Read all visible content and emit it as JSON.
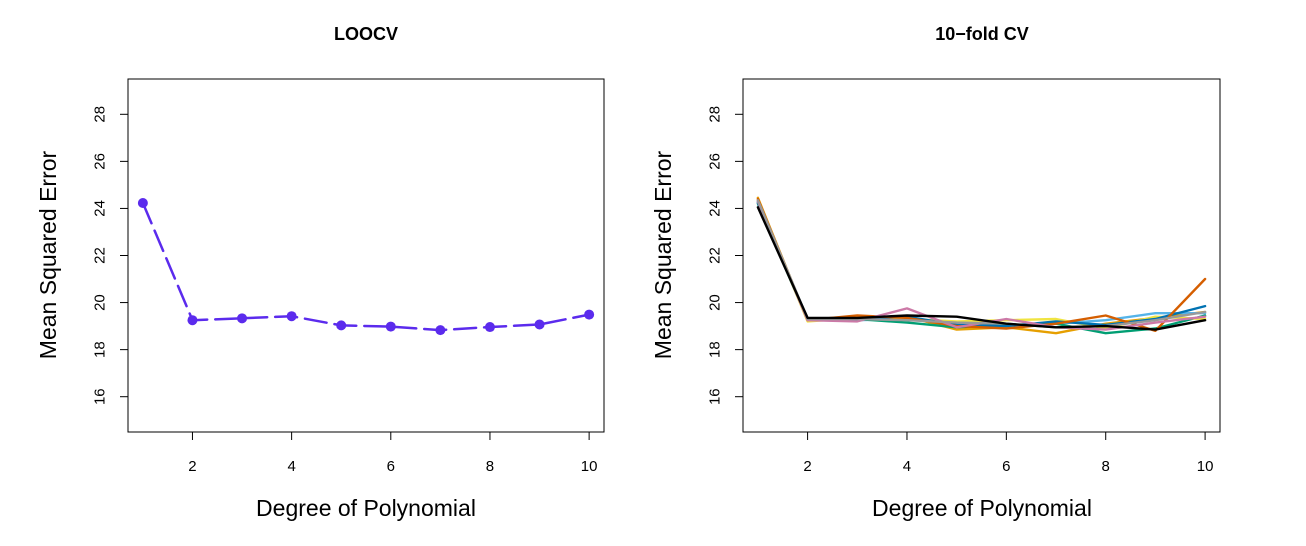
{
  "chart_data": [
    {
      "type": "line",
      "title": "LOOCV",
      "xlabel": "Degree of Polynomial",
      "ylabel": "Mean Squared Error",
      "xlim": [
        0.7,
        10.3
      ],
      "ylim": [
        14.5,
        29.5
      ],
      "xticks": [
        2,
        4,
        6,
        8,
        10
      ],
      "yticks": [
        16,
        18,
        20,
        22,
        24,
        26,
        28
      ],
      "markers": true,
      "dashed": true,
      "grid": false,
      "series": [
        {
          "color": "#5b2bed",
          "x": [
            1,
            2,
            3,
            4,
            5,
            6,
            7,
            8,
            9,
            10
          ],
          "y": [
            24.23,
            19.25,
            19.33,
            19.42,
            19.03,
            18.98,
            18.83,
            18.96,
            19.07,
            19.49
          ]
        }
      ]
    },
    {
      "type": "line",
      "title": "10−fold CV",
      "xlabel": "Degree of Polynomial",
      "ylabel": "Mean Squared Error",
      "xlim": [
        0.7,
        10.3
      ],
      "ylim": [
        14.5,
        29.5
      ],
      "xticks": [
        2,
        4,
        6,
        8,
        10
      ],
      "yticks": [
        16,
        18,
        20,
        22,
        24,
        26,
        28
      ],
      "markers": false,
      "dashed": false,
      "grid": false,
      "series": [
        {
          "color": "#e69f00",
          "x": [
            1,
            2,
            3,
            4,
            5,
            6,
            7,
            8,
            9,
            10
          ],
          "y": [
            24.45,
            19.25,
            19.3,
            19.4,
            18.85,
            18.95,
            18.7,
            19.1,
            19.35,
            19.6
          ]
        },
        {
          "color": "#56b4e9",
          "x": [
            1,
            2,
            3,
            4,
            5,
            6,
            7,
            8,
            9,
            10
          ],
          "y": [
            24.3,
            19.3,
            19.25,
            19.3,
            19.1,
            19.0,
            19.1,
            19.25,
            19.55,
            19.55
          ]
        },
        {
          "color": "#009e73",
          "x": [
            1,
            2,
            3,
            4,
            5,
            6,
            7,
            8,
            9,
            10
          ],
          "y": [
            24.2,
            19.25,
            19.3,
            19.15,
            18.95,
            19.05,
            19.1,
            18.7,
            18.9,
            19.45
          ]
        },
        {
          "color": "#f0e442",
          "x": [
            1,
            2,
            3,
            4,
            5,
            6,
            7,
            8,
            9,
            10
          ],
          "y": [
            24.35,
            19.2,
            19.35,
            19.3,
            19.2,
            19.25,
            19.3,
            18.9,
            19.4,
            19.3
          ]
        },
        {
          "color": "#0072b2",
          "x": [
            1,
            2,
            3,
            4,
            5,
            6,
            7,
            8,
            9,
            10
          ],
          "y": [
            24.25,
            19.3,
            19.3,
            19.4,
            19.05,
            19.0,
            19.2,
            19.05,
            19.3,
            19.85
          ]
        },
        {
          "color": "#d55e00",
          "x": [
            1,
            2,
            3,
            4,
            5,
            6,
            7,
            8,
            9,
            10
          ],
          "y": [
            24.4,
            19.25,
            19.45,
            19.35,
            19.0,
            18.9,
            19.1,
            19.45,
            18.8,
            21.0
          ]
        },
        {
          "color": "#cc79a7",
          "x": [
            1,
            2,
            3,
            4,
            5,
            6,
            7,
            8,
            9,
            10
          ],
          "y": [
            24.3,
            19.25,
            19.2,
            19.75,
            18.95,
            19.3,
            18.95,
            18.85,
            19.15,
            19.4
          ]
        },
        {
          "color": "#999999",
          "x": [
            1,
            2,
            3,
            4,
            5,
            6,
            7,
            8,
            9,
            10
          ],
          "y": [
            24.35,
            19.3,
            19.3,
            19.25,
            19.15,
            19.1,
            18.95,
            19.0,
            19.25,
            19.6
          ]
        },
        {
          "color": "#000000",
          "x": [
            1,
            2,
            3,
            4,
            5,
            6,
            7,
            8,
            9,
            10
          ],
          "y": [
            24.05,
            19.35,
            19.35,
            19.45,
            19.4,
            19.1,
            18.95,
            19.0,
            18.85,
            19.25
          ]
        }
      ]
    }
  ]
}
